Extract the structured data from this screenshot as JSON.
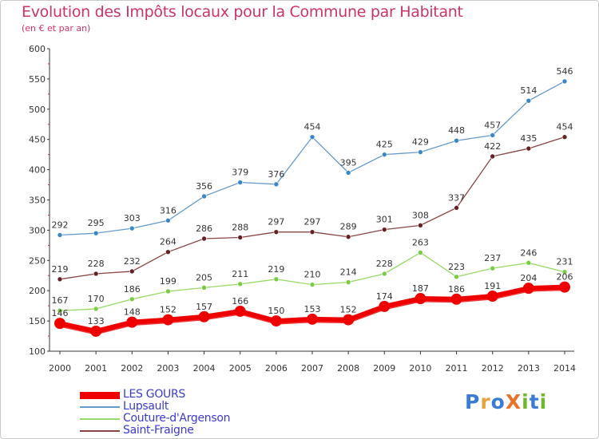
{
  "title": "Evolution des Impôts locaux pour la Commune par Habitant",
  "subtitle": "(en € et par an)",
  "logo": {
    "text": "ProXiti",
    "letter_colors": [
      "#3a7bd5",
      "#e8a33d",
      "#3a7bd5",
      "#e8732d",
      "#6bb82e",
      "#3a7bd5",
      "#6bb82e"
    ]
  },
  "chart_data": {
    "type": "line",
    "x": [
      "2000",
      "2001",
      "2002",
      "2003",
      "2004",
      "2005",
      "2006",
      "2007",
      "2008",
      "2009",
      "2010",
      "2011",
      "2012",
      "2013",
      "2014"
    ],
    "ylim": [
      100,
      600
    ],
    "yticks": [
      "100",
      "150",
      "200",
      "250",
      "300",
      "350",
      "400",
      "450",
      "500",
      "550",
      "600"
    ],
    "grid": false,
    "legend_position": "bottom-left",
    "series": [
      {
        "name": "LES GOURS",
        "color": "#ee0000",
        "emphasis": true,
        "values": [
          146,
          133,
          148,
          152,
          157,
          166,
          150,
          153,
          152,
          174,
          187,
          186,
          191,
          204,
          206
        ]
      },
      {
        "name": "Lupsault",
        "color": "#6699cc",
        "marker_color": "#3a87c8",
        "values": [
          292,
          295,
          303,
          316,
          356,
          379,
          376,
          454,
          395,
          425,
          429,
          448,
          457,
          514,
          546
        ]
      },
      {
        "name": "Couture-d'Argenson",
        "color": "#99d966",
        "marker_color": "#77cc44",
        "values": [
          167,
          170,
          186,
          199,
          205,
          211,
          219,
          210,
          214,
          228,
          263,
          223,
          237,
          246,
          231
        ]
      },
      {
        "name": "Saint-Fraigne",
        "color": "#884444",
        "marker_color": "#662222",
        "values": [
          219,
          228,
          232,
          264,
          286,
          288,
          297,
          297,
          289,
          301,
          308,
          337,
          422,
          435,
          454
        ]
      }
    ]
  }
}
